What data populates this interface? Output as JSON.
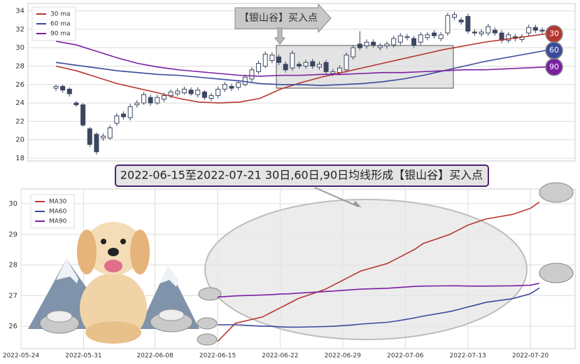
{
  "chart_data": [
    {
      "type": "candlestick",
      "ohlc": [
        [
          25.6,
          26.0,
          25.3,
          25.8
        ],
        [
          25.8,
          26.0,
          25.1,
          25.4
        ],
        [
          25.5,
          25.7,
          24.7,
          25.0
        ],
        [
          24.0,
          24.2,
          23.6,
          23.8
        ],
        [
          23.8,
          24.0,
          21.4,
          21.6
        ],
        [
          21.2,
          21.4,
          19.2,
          19.5
        ],
        [
          20.6,
          20.8,
          18.4,
          18.7
        ],
        [
          20.2,
          20.7,
          19.9,
          20.4
        ],
        [
          20.2,
          21.6,
          20.0,
          21.3
        ],
        [
          21.8,
          22.9,
          21.5,
          22.6
        ],
        [
          22.8,
          23.1,
          22.2,
          22.5
        ],
        [
          22.4,
          23.9,
          22.1,
          23.6
        ],
        [
          23.8,
          24.3,
          23.5,
          24.0
        ],
        [
          24.0,
          25.2,
          23.8,
          24.9
        ],
        [
          24.6,
          24.9,
          23.7,
          24.0
        ],
        [
          24.0,
          24.9,
          23.8,
          24.6
        ],
        [
          24.4,
          25.1,
          24.1,
          24.8
        ],
        [
          24.8,
          25.5,
          24.5,
          25.2
        ],
        [
          25.0,
          25.6,
          24.7,
          25.3
        ],
        [
          25.1,
          25.8,
          24.9,
          25.5
        ],
        [
          25.4,
          25.7,
          24.8,
          25.0
        ],
        [
          24.9,
          25.7,
          24.6,
          25.4
        ],
        [
          25.2,
          25.4,
          24.3,
          24.6
        ],
        [
          24.5,
          25.1,
          24.2,
          24.8
        ],
        [
          24.8,
          25.8,
          24.5,
          25.5
        ],
        [
          25.5,
          26.3,
          25.2,
          26.0
        ],
        [
          25.8,
          26.1,
          25.3,
          25.6
        ],
        [
          25.7,
          26.5,
          25.4,
          26.2
        ],
        [
          26.0,
          27.1,
          25.8,
          26.8
        ],
        [
          26.6,
          27.9,
          26.3,
          27.6
        ],
        [
          27.4,
          28.6,
          27.1,
          28.3
        ],
        [
          28.0,
          29.6,
          27.8,
          29.3
        ],
        [
          28.6,
          29.5,
          28.3,
          29.2
        ],
        [
          29.0,
          29.3,
          28.1,
          28.4
        ],
        [
          28.2,
          28.5,
          27.3,
          27.6
        ],
        [
          27.8,
          29.7,
          27.5,
          29.4
        ],
        [
          28.2,
          28.5,
          27.7,
          28.0
        ],
        [
          28.0,
          28.7,
          27.7,
          28.4
        ],
        [
          28.5,
          28.8,
          27.7,
          28.0
        ],
        [
          27.9,
          28.5,
          27.6,
          28.2
        ],
        [
          28.4,
          28.7,
          27.1,
          27.4
        ],
        [
          27.2,
          27.7,
          26.9,
          27.4
        ],
        [
          27.3,
          28.1,
          27.0,
          27.8
        ],
        [
          27.6,
          29.5,
          27.3,
          29.2
        ],
        [
          29.0,
          30.3,
          28.7,
          30.0
        ],
        [
          30.4,
          31.8,
          29.7,
          30.0
        ],
        [
          30.2,
          30.9,
          29.9,
          30.6
        ],
        [
          30.6,
          30.9,
          30.0,
          30.3
        ],
        [
          30.0,
          30.5,
          29.7,
          30.2
        ],
        [
          30.2,
          30.7,
          29.9,
          30.4
        ],
        [
          30.3,
          31.3,
          30.0,
          31.0
        ],
        [
          30.6,
          31.6,
          30.3,
          31.3
        ],
        [
          31.1,
          31.5,
          30.8,
          31.2
        ],
        [
          31.0,
          31.3,
          30.0,
          30.3
        ],
        [
          30.6,
          31.7,
          30.3,
          31.4
        ],
        [
          31.1,
          31.7,
          30.8,
          31.4
        ],
        [
          31.6,
          31.9,
          31.0,
          31.3
        ],
        [
          31.0,
          31.7,
          30.7,
          31.4
        ],
        [
          31.6,
          33.8,
          31.3,
          33.5
        ],
        [
          33.3,
          33.9,
          33.0,
          33.6
        ],
        [
          33.0,
          33.3,
          32.5,
          32.8
        ],
        [
          33.4,
          33.7,
          31.5,
          31.8
        ],
        [
          31.7,
          32.0,
          31.3,
          31.6
        ],
        [
          31.5,
          32.0,
          31.2,
          31.7
        ],
        [
          31.6,
          32.6,
          31.3,
          32.3
        ],
        [
          31.9,
          32.2,
          31.3,
          31.6
        ],
        [
          31.6,
          31.9,
          30.5,
          30.8
        ],
        [
          30.8,
          31.7,
          30.5,
          31.4
        ],
        [
          31.2,
          31.5,
          30.7,
          31.0
        ],
        [
          30.9,
          31.5,
          30.6,
          31.2
        ],
        [
          31.6,
          32.5,
          31.3,
          32.2
        ],
        [
          32.2,
          32.5,
          31.6,
          31.9
        ],
        [
          31.9,
          32.2,
          31.5,
          31.8
        ]
      ],
      "up_color": "#ffffff",
      "down_color": "#3b4660",
      "series": [
        {
          "name": "30 ma",
          "color": "#b5372f",
          "values": [
            28.0,
            27.5,
            26.8,
            26.1,
            25.6,
            25.1,
            24.5,
            24.1,
            24.0,
            24.1,
            24.5,
            25.5,
            26.2,
            26.8,
            27.3,
            27.8,
            28.3,
            28.8,
            29.3,
            29.8,
            30.2,
            30.6,
            30.9,
            31.2,
            31.5
          ]
        },
        {
          "name": "60 ma",
          "color": "#3a4a9c",
          "values": [
            28.4,
            28.1,
            27.8,
            27.5,
            27.3,
            27.1,
            27.0,
            26.8,
            26.6,
            26.4,
            26.1,
            26.0,
            26.0,
            25.9,
            26.0,
            26.1,
            26.3,
            26.6,
            27.0,
            27.5,
            28.0,
            28.5,
            28.9,
            29.3,
            29.7
          ]
        },
        {
          "name": "90 ma",
          "color": "#7a1fa2",
          "values": [
            30.7,
            30.3,
            29.6,
            28.9,
            28.3,
            27.9,
            27.6,
            27.4,
            27.2,
            27.0,
            26.9,
            27.0,
            27.0,
            27.1,
            27.1,
            27.2,
            27.3,
            27.3,
            27.4,
            27.5,
            27.6,
            27.6,
            27.7,
            27.8,
            27.9
          ]
        }
      ],
      "end_labels": [
        "30",
        "60",
        "90"
      ],
      "annotation": "【银山谷】买入点",
      "ylim": [
        17.7,
        34.8
      ],
      "yticks": [
        18,
        20,
        22,
        24,
        26,
        28,
        30,
        32,
        34
      ],
      "grid": true,
      "legend": "upper left"
    },
    {
      "type": "line",
      "title": "2022-06-15至2022-07-21 30日,60日,90日均线形成【银山谷】买入点",
      "x": [
        "2022-06-15",
        "2022-06-16",
        "2022-06-17",
        "2022-06-20",
        "2022-06-21",
        "2022-06-22",
        "2022-06-23",
        "2022-06-24",
        "2022-06-27",
        "2022-06-28",
        "2022-06-29",
        "2022-06-30",
        "2022-07-01",
        "2022-07-04",
        "2022-07-05",
        "2022-07-06",
        "2022-07-07",
        "2022-07-08",
        "2022-07-11",
        "2022-07-12",
        "2022-07-13",
        "2022-07-14",
        "2022-07-15",
        "2022-07-18",
        "2022-07-19",
        "2022-07-20",
        "2022-07-21"
      ],
      "series": [
        {
          "name": "MA30",
          "color": "#b5372f",
          "values": [
            25.5,
            25.8,
            26.1,
            26.3,
            26.45,
            26.6,
            26.75,
            26.9,
            27.2,
            27.35,
            27.5,
            27.65,
            27.8,
            28.05,
            28.2,
            28.35,
            28.5,
            28.7,
            29.0,
            29.15,
            29.3,
            29.4,
            29.5,
            29.65,
            29.75,
            29.85,
            30.05
          ]
        },
        {
          "name": "MA60",
          "color": "#3a4a9c",
          "values": [
            26.05,
            26.05,
            26.05,
            26.0,
            26.0,
            25.98,
            25.97,
            25.97,
            25.99,
            26.0,
            26.02,
            26.04,
            26.07,
            26.13,
            26.17,
            26.22,
            26.27,
            26.33,
            26.48,
            26.55,
            26.63,
            26.7,
            26.78,
            26.9,
            26.98,
            27.06,
            27.25
          ]
        },
        {
          "name": "MA90",
          "color": "#7a1fa2",
          "values": [
            26.95,
            26.97,
            26.99,
            27.02,
            27.03,
            27.05,
            27.06,
            27.08,
            27.13,
            27.15,
            27.17,
            27.19,
            27.21,
            27.24,
            27.26,
            27.28,
            27.3,
            27.31,
            27.32,
            27.32,
            27.31,
            27.31,
            27.31,
            27.32,
            27.33,
            27.34,
            27.4
          ]
        }
      ],
      "xlim": [
        "2022-05-24",
        "2022-07-25"
      ],
      "xticks": [
        "2022-05-24",
        "2022-05-31",
        "2022-06-08",
        "2022-06-15",
        "2022-06-22",
        "2022-06-29",
        "2022-07-06",
        "2022-07-13",
        "2022-07-20"
      ],
      "ylim": [
        25.27,
        30.48
      ],
      "yticks": [
        26,
        27,
        28,
        29,
        30
      ],
      "grid": true,
      "legend": "upper left"
    }
  ]
}
